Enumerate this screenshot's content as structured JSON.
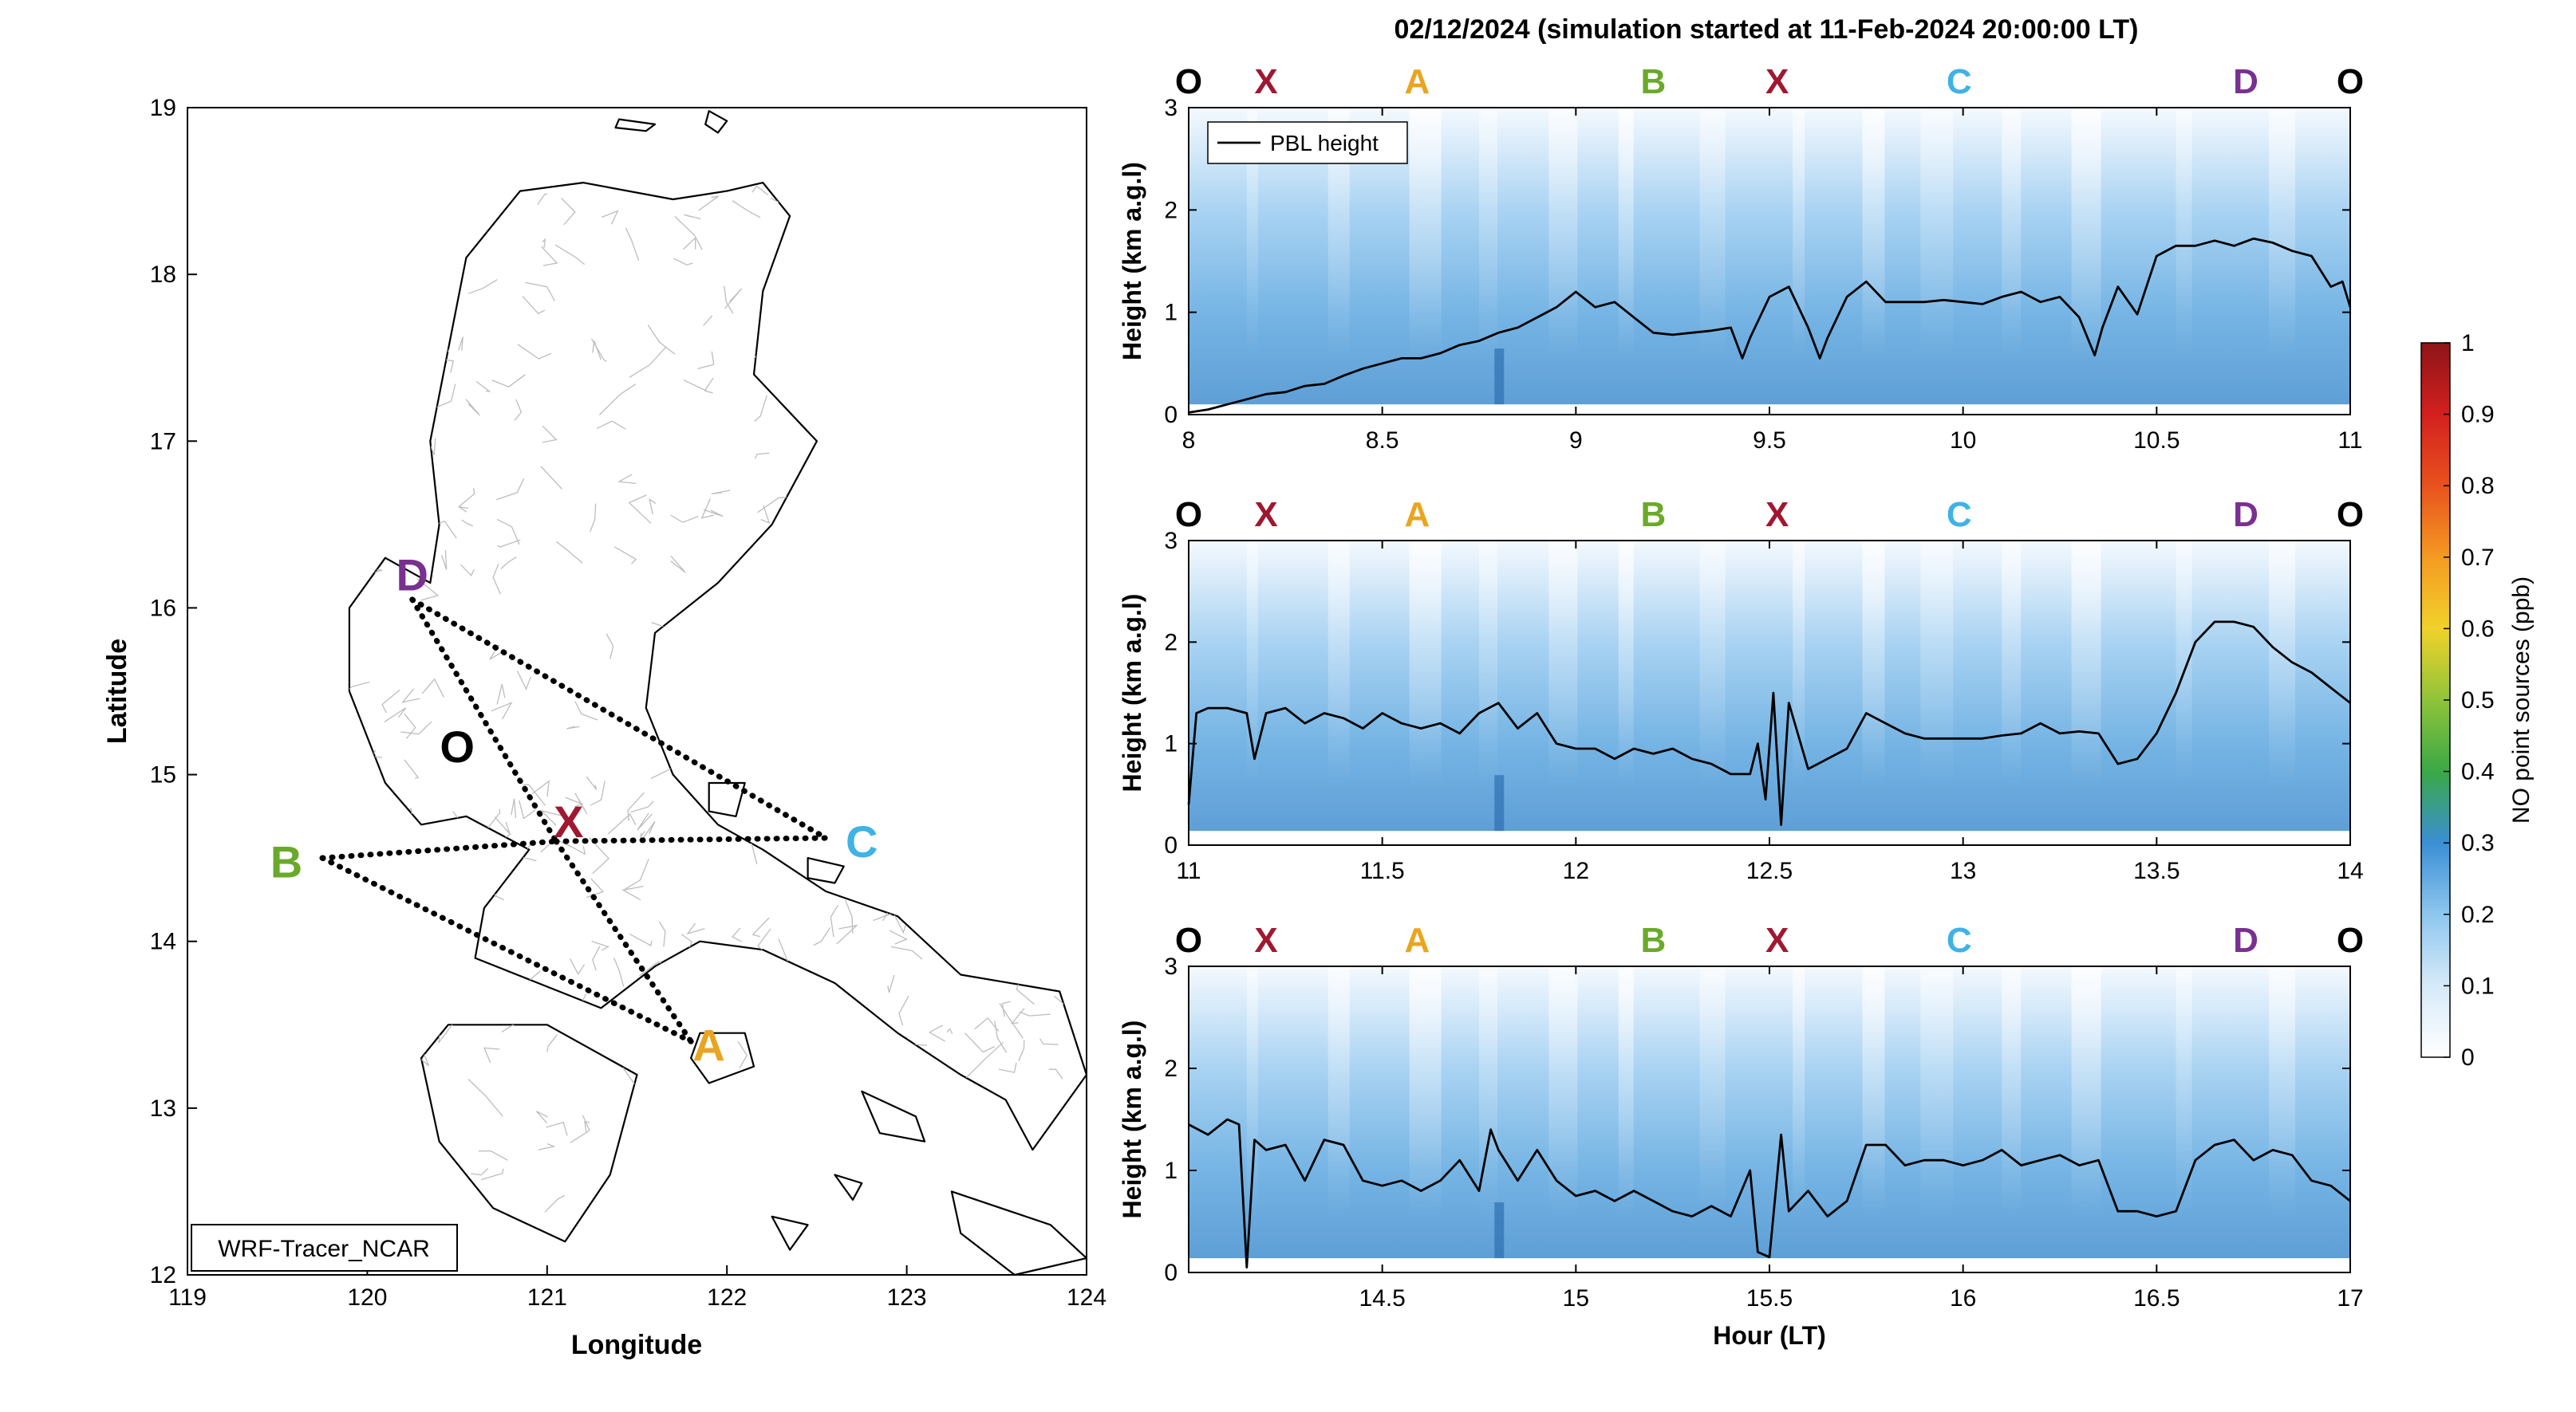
{
  "figure": {
    "title": "02/12/2024 (simulation started at 11-Feb-2024 20:00:00 LT)",
    "colors": {
      "black": "#000000",
      "X": "#a01830",
      "A": "#eaa520",
      "B": "#6aaa2a",
      "C": "#3fb2e6",
      "D": "#7a3090",
      "O": "#000000",
      "route": "#000000",
      "admin_lines": "#bdbdbd"
    }
  },
  "map": {
    "xlabel": "Longitude",
    "ylabel": "Latitude",
    "xlim": [
      119,
      124
    ],
    "ylim": [
      12,
      19
    ],
    "xticks": [
      119,
      120,
      121,
      122,
      123,
      124
    ],
    "yticks": [
      12,
      13,
      14,
      15,
      16,
      17,
      18,
      19
    ],
    "model_label": "WRF-Tracer_NCAR",
    "points": [
      {
        "name": "D",
        "lon": 120.25,
        "lat": 16.05,
        "label_lon": 120.25,
        "label_lat": 16.2
      },
      {
        "name": "O",
        "lon": 120.55,
        "lat": 15.0,
        "label_lon": 120.5,
        "label_lat": 15.17
      },
      {
        "name": "X",
        "lon": 121.05,
        "lat": 14.6,
        "label_lon": 121.12,
        "label_lat": 14.72
      },
      {
        "name": "B",
        "lon": 119.75,
        "lat": 14.5,
        "label_lon": 119.55,
        "label_lat": 14.48
      },
      {
        "name": "C",
        "lon": 122.55,
        "lat": 14.62,
        "label_lon": 122.75,
        "label_lat": 14.6
      },
      {
        "name": "A",
        "lon": 121.8,
        "lat": 13.4,
        "label_lon": 121.9,
        "label_lat": 13.38
      }
    ],
    "route_segments": [
      [
        "D",
        "C"
      ],
      [
        "D",
        "X"
      ],
      [
        "B",
        "X"
      ],
      [
        "X",
        "C"
      ],
      [
        "B",
        "A"
      ],
      [
        "X",
        "A"
      ]
    ]
  },
  "colorbar": {
    "label": "NO point sources (ppb)",
    "ticks": [
      "0",
      "0.1",
      "0.2",
      "0.3",
      "0.4",
      "0.5",
      "0.6",
      "0.7",
      "0.8",
      "0.9",
      "1"
    ],
    "min": 0,
    "max": 1
  },
  "chart_data": [
    {
      "type": "line",
      "panel": "top",
      "xlim": [
        8,
        11
      ],
      "ylim": [
        0,
        3
      ],
      "xticks": [
        "8",
        "8.5",
        "9",
        "9.5",
        "10",
        "10.5",
        "11"
      ],
      "yticks": [
        "0",
        "1",
        "2",
        "3"
      ],
      "xlabel": "",
      "ylabel": "Height (km a.g.l)",
      "legend": "PBL height",
      "legend_position": "top-left",
      "route_labels": [
        {
          "label": "O",
          "x": 8.0
        },
        {
          "label": "X",
          "x": 8.2
        },
        {
          "label": "A",
          "x": 8.59
        },
        {
          "label": "B",
          "x": 9.2
        },
        {
          "label": "X",
          "x": 9.52
        },
        {
          "label": "C",
          "x": 9.99
        },
        {
          "label": "D",
          "x": 10.73
        },
        {
          "label": "O",
          "x": 11.0
        }
      ],
      "series": [
        {
          "name": "PBL height",
          "x": [
            8.0,
            8.05,
            8.1,
            8.15,
            8.2,
            8.25,
            8.3,
            8.35,
            8.4,
            8.45,
            8.5,
            8.55,
            8.6,
            8.65,
            8.7,
            8.75,
            8.8,
            8.85,
            8.9,
            8.95,
            9.0,
            9.05,
            9.1,
            9.15,
            9.2,
            9.25,
            9.3,
            9.35,
            9.4,
            9.43,
            9.45,
            9.5,
            9.55,
            9.6,
            9.63,
            9.65,
            9.7,
            9.75,
            9.8,
            9.85,
            9.9,
            9.95,
            10.0,
            10.05,
            10.1,
            10.15,
            10.2,
            10.25,
            10.3,
            10.34,
            10.36,
            10.4,
            10.45,
            10.5,
            10.55,
            10.6,
            10.65,
            10.7,
            10.75,
            10.8,
            10.85,
            10.9,
            10.95,
            10.98,
            11.0
          ],
          "y": [
            0.02,
            0.05,
            0.1,
            0.15,
            0.2,
            0.22,
            0.28,
            0.3,
            0.38,
            0.45,
            0.5,
            0.55,
            0.55,
            0.6,
            0.68,
            0.72,
            0.8,
            0.85,
            0.95,
            1.05,
            1.2,
            1.05,
            1.1,
            0.95,
            0.8,
            0.78,
            0.8,
            0.82,
            0.85,
            0.55,
            0.75,
            1.15,
            1.25,
            0.85,
            0.55,
            0.75,
            1.15,
            1.3,
            1.1,
            1.1,
            1.1,
            1.12,
            1.1,
            1.08,
            1.15,
            1.2,
            1.1,
            1.15,
            0.95,
            0.58,
            0.85,
            1.25,
            0.98,
            1.55,
            1.65,
            1.65,
            1.7,
            1.65,
            1.72,
            1.68,
            1.6,
            1.55,
            1.25,
            1.3,
            1.05
          ]
        }
      ]
    },
    {
      "type": "line",
      "panel": "middle",
      "xlim": [
        11,
        14
      ],
      "ylim": [
        0,
        3
      ],
      "xticks": [
        "11",
        "11.5",
        "12",
        "12.5",
        "13",
        "13.5",
        "14"
      ],
      "yticks": [
        "0",
        "1",
        "2",
        "3"
      ],
      "xlabel": "",
      "ylabel": "Height (km a.g.l)",
      "route_labels": [
        {
          "label": "O",
          "x": 11.0
        },
        {
          "label": "X",
          "x": 11.2
        },
        {
          "label": "A",
          "x": 11.59
        },
        {
          "label": "B",
          "x": 12.2
        },
        {
          "label": "X",
          "x": 12.52
        },
        {
          "label": "C",
          "x": 12.99
        },
        {
          "label": "D",
          "x": 13.73
        },
        {
          "label": "O",
          "x": 14.0
        }
      ],
      "series": [
        {
          "name": "PBL height",
          "x": [
            11.0,
            11.02,
            11.05,
            11.1,
            11.15,
            11.17,
            11.2,
            11.25,
            11.3,
            11.35,
            11.4,
            11.45,
            11.5,
            11.55,
            11.6,
            11.65,
            11.7,
            11.75,
            11.8,
            11.85,
            11.9,
            11.95,
            12.0,
            12.05,
            12.1,
            12.15,
            12.2,
            12.25,
            12.3,
            12.35,
            12.4,
            12.45,
            12.47,
            12.49,
            12.51,
            12.53,
            12.55,
            12.6,
            12.65,
            12.7,
            12.75,
            12.8,
            12.85,
            12.9,
            12.95,
            13.0,
            13.05,
            13.1,
            13.15,
            13.2,
            13.25,
            13.3,
            13.35,
            13.4,
            13.45,
            13.5,
            13.55,
            13.6,
            13.65,
            13.7,
            13.75,
            13.8,
            13.85,
            13.9,
            13.95,
            14.0
          ],
          "y": [
            0.4,
            1.3,
            1.35,
            1.35,
            1.3,
            0.85,
            1.3,
            1.35,
            1.2,
            1.3,
            1.25,
            1.15,
            1.3,
            1.2,
            1.15,
            1.2,
            1.1,
            1.3,
            1.4,
            1.15,
            1.3,
            1.0,
            0.95,
            0.95,
            0.85,
            0.95,
            0.9,
            0.95,
            0.85,
            0.8,
            0.7,
            0.7,
            1.0,
            0.45,
            1.5,
            0.2,
            1.4,
            0.75,
            0.85,
            0.95,
            1.3,
            1.2,
            1.1,
            1.05,
            1.05,
            1.05,
            1.05,
            1.08,
            1.1,
            1.2,
            1.1,
            1.12,
            1.1,
            0.8,
            0.85,
            1.1,
            1.5,
            2.0,
            2.2,
            2.2,
            2.15,
            1.95,
            1.8,
            1.7,
            1.55,
            1.4
          ]
        }
      ]
    },
    {
      "type": "line",
      "panel": "bottom",
      "xlim": [
        14,
        17
      ],
      "ylim": [
        0,
        3
      ],
      "xticks": [
        "14.5",
        "15",
        "15.5",
        "16",
        "16.5",
        "17"
      ],
      "yticks": [
        "0",
        "1",
        "2",
        "3"
      ],
      "xlabel": "Hour (LT)",
      "ylabel": "Height (km a.g.l)",
      "route_labels": [
        {
          "label": "O",
          "x": 14.0
        },
        {
          "label": "X",
          "x": 14.2
        },
        {
          "label": "A",
          "x": 14.59
        },
        {
          "label": "B",
          "x": 15.2
        },
        {
          "label": "X",
          "x": 15.52
        },
        {
          "label": "C",
          "x": 15.99
        },
        {
          "label": "D",
          "x": 16.73
        },
        {
          "label": "O",
          "x": 17.0
        }
      ],
      "series": [
        {
          "name": "PBL height",
          "x": [
            14.0,
            14.05,
            14.1,
            14.13,
            14.15,
            14.17,
            14.2,
            14.25,
            14.3,
            14.35,
            14.4,
            14.45,
            14.5,
            14.55,
            14.6,
            14.65,
            14.7,
            14.75,
            14.78,
            14.8,
            14.85,
            14.9,
            14.95,
            15.0,
            15.05,
            15.1,
            15.15,
            15.2,
            15.25,
            15.3,
            15.35,
            15.4,
            15.45,
            15.47,
            15.5,
            15.53,
            15.55,
            15.6,
            15.65,
            15.7,
            15.75,
            15.8,
            15.85,
            15.9,
            15.95,
            16.0,
            16.05,
            16.1,
            16.15,
            16.2,
            16.25,
            16.3,
            16.35,
            16.4,
            16.45,
            16.5,
            16.55,
            16.6,
            16.65,
            16.7,
            16.75,
            16.8,
            16.85,
            16.9,
            16.95,
            17.0
          ],
          "y": [
            1.45,
            1.35,
            1.5,
            1.45,
            0.05,
            1.3,
            1.2,
            1.25,
            0.9,
            1.3,
            1.25,
            0.9,
            0.85,
            0.9,
            0.8,
            0.9,
            1.1,
            0.8,
            1.4,
            1.2,
            0.9,
            1.2,
            0.9,
            0.75,
            0.8,
            0.7,
            0.8,
            0.7,
            0.6,
            0.55,
            0.65,
            0.55,
            1.0,
            0.2,
            0.15,
            1.35,
            0.6,
            0.8,
            0.55,
            0.7,
            1.25,
            1.25,
            1.05,
            1.1,
            1.1,
            1.05,
            1.1,
            1.2,
            1.05,
            1.1,
            1.15,
            1.05,
            1.1,
            0.6,
            0.6,
            0.55,
            0.6,
            1.1,
            1.25,
            1.3,
            1.1,
            1.2,
            1.15,
            0.9,
            0.85,
            0.7
          ]
        }
      ]
    }
  ]
}
